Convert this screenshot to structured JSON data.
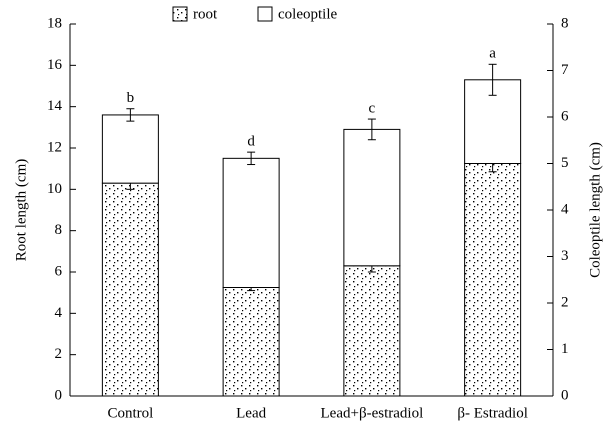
{
  "chart_data": {
    "type": "stacked_bar",
    "categories": [
      "Control",
      "Lead",
      "Lead+β-estradiol",
      "β- Estradiol"
    ],
    "series": [
      {
        "name": "root",
        "color": "#ffffff",
        "pattern": "dots",
        "values": [
          10.3,
          5.25,
          6.3,
          11.25
        ],
        "errors": [
          0.3,
          0.15,
          0.3,
          0.4
        ],
        "letters": [
          "b",
          "d",
          "c",
          null
        ]
      },
      {
        "name": "coleoptile",
        "color": "#ffffff",
        "values": [
          3.3,
          6.25,
          6.6,
          4.05
        ],
        "errors": [
          0.3,
          0.3,
          0.5,
          0.75
        ],
        "letters": [
          "b",
          "d",
          "c",
          "a"
        ]
      }
    ],
    "ylabel": "Root length (cm)",
    "y2label": "Coleoptile length (cm)",
    "ylim": [
      0,
      18
    ],
    "yticks": [
      0,
      2,
      4,
      6,
      8,
      10,
      12,
      14,
      16,
      18
    ],
    "y2lim": [
      0,
      8
    ],
    "y2ticks": [
      0,
      1,
      2,
      3,
      4,
      5,
      6,
      7,
      8
    ],
    "legend": "top",
    "grid": false
  }
}
